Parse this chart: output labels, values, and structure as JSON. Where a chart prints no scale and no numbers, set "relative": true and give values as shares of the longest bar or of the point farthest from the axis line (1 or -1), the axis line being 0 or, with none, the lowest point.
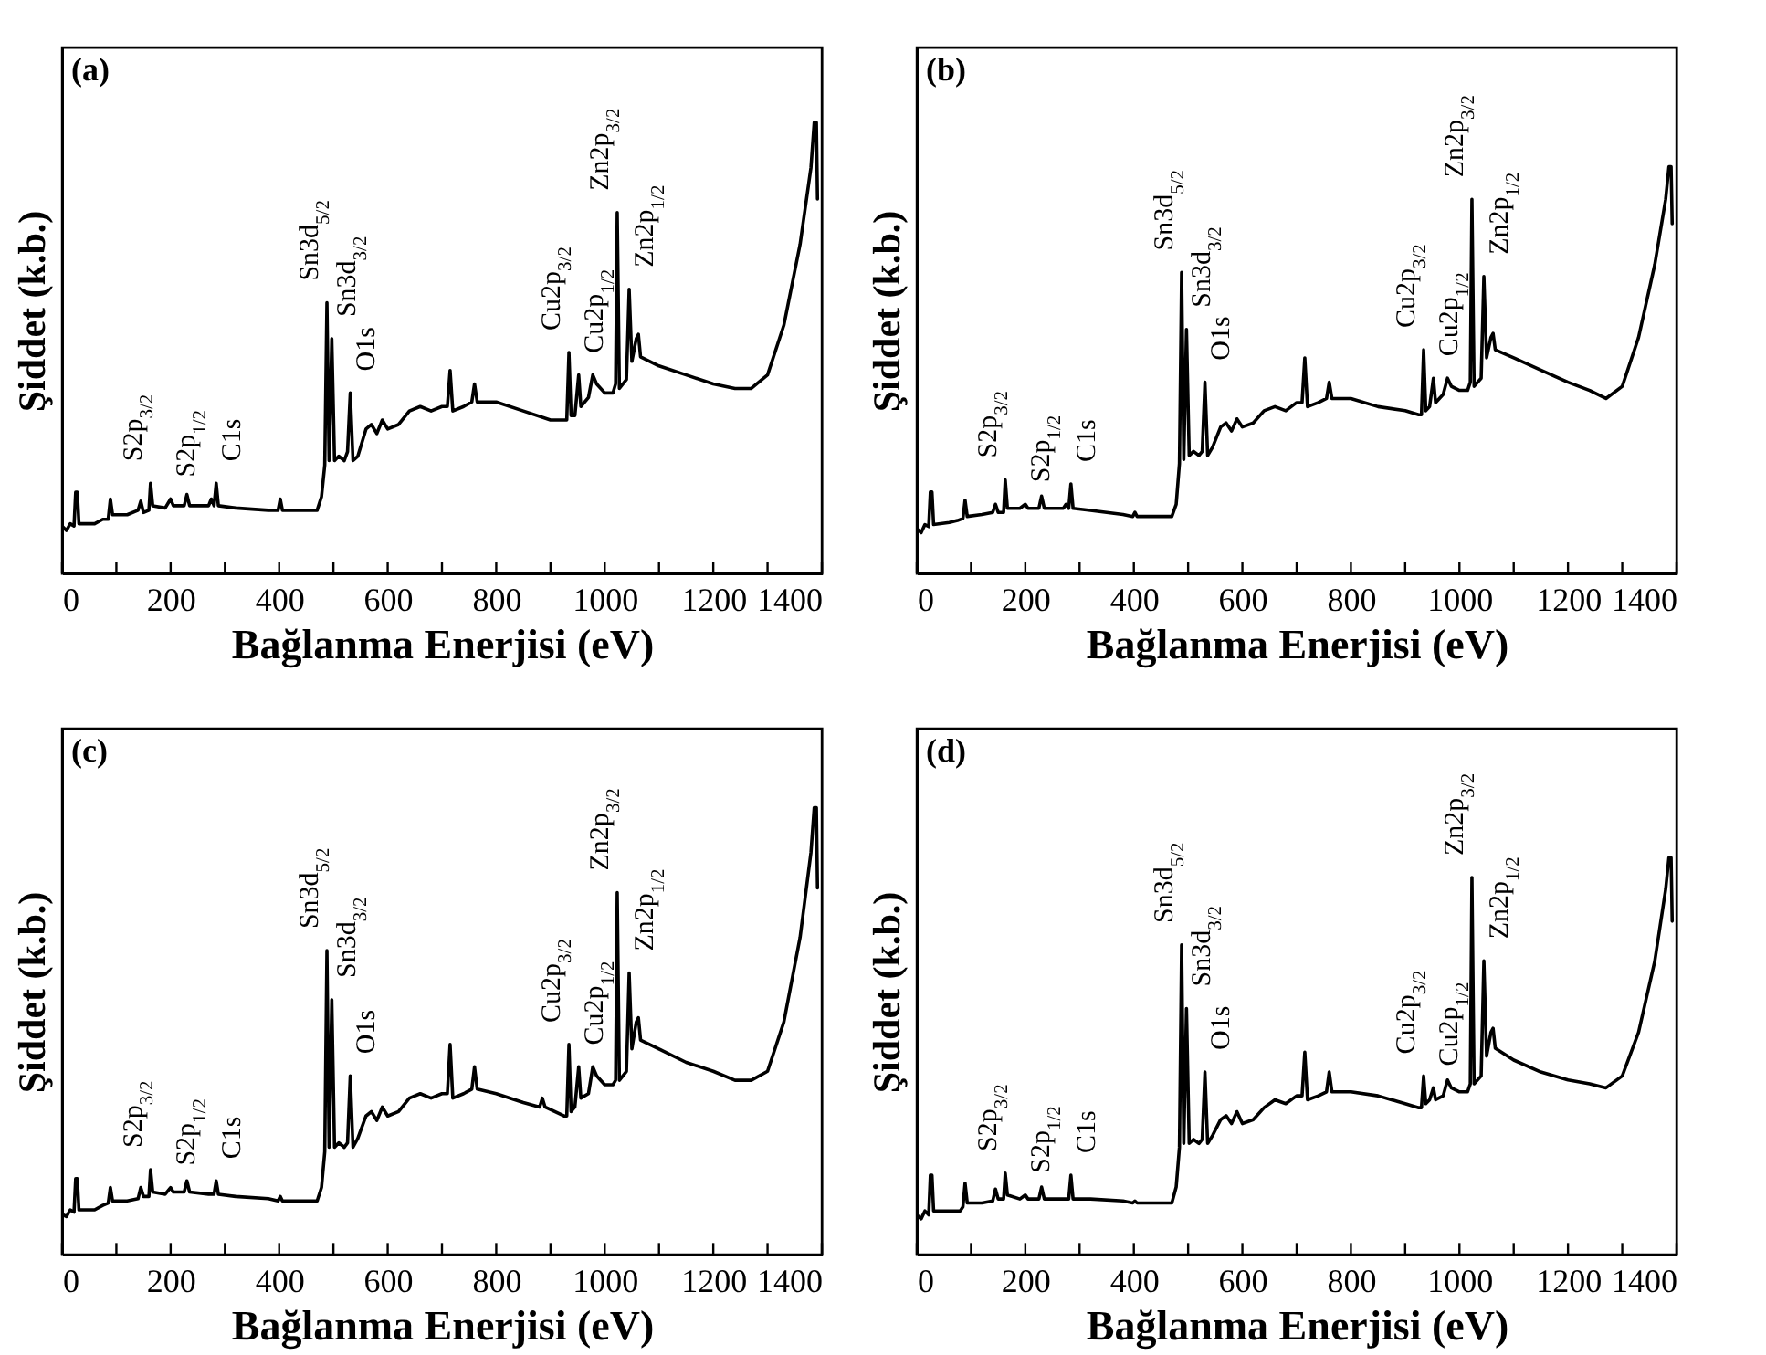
{
  "chart_data": [
    {
      "type": "line",
      "title": "(a)",
      "xlabel": "Bağlanma Enerjisi (eV)",
      "ylabel": "Şiddet (k.b.)",
      "relative": true,
      "grid": false,
      "xlim": [
        0,
        1400
      ],
      "xticks": [
        0,
        {
          "value": 100,
          "label": null
        },
        200,
        {
          "value": 300,
          "label": null
        },
        400,
        {
          "value": 500,
          "label": null
        },
        600,
        {
          "value": 700,
          "label": null
        },
        800,
        {
          "value": 900,
          "label": null
        },
        1000,
        {
          "value": 1100,
          "label": null
        },
        1200,
        {
          "value": 1300,
          "label": null
        },
        1400
      ],
      "series": [
        {
          "color": "#000000",
          "x": [
            0,
            8,
            15,
            22,
            25,
            28,
            31,
            60,
            75,
            85,
            89,
            93,
            120,
            140,
            145,
            150,
            160,
            163,
            167,
            190,
            200,
            205,
            225,
            230,
            235,
            270,
            275,
            280,
            284,
            288,
            320,
            380,
            398,
            402,
            406,
            470,
            478,
            484,
            488,
            492,
            497,
            502,
            510,
            520,
            526,
            531,
            536,
            545,
            560,
            570,
            580,
            590,
            600,
            620,
            640,
            660,
            680,
            700,
            710,
            715,
            720,
            740,
            755,
            760,
            765,
            800,
            850,
            900,
            925,
            930,
            934,
            938,
            945,
            952,
            956,
            970,
            978,
            985,
            1000,
            1015,
            1020,
            1023,
            1027,
            1040,
            1045,
            1050,
            1058,
            1062,
            1066,
            1100,
            1150,
            1200,
            1240,
            1270,
            1300,
            1330,
            1360,
            1380,
            1386,
            1390,
            1392
          ],
          "values": [
            0.105,
            0.095,
            0.11,
            0.105,
            0.18,
            0.18,
            0.11,
            0.11,
            0.12,
            0.12,
            0.165,
            0.13,
            0.13,
            0.14,
            0.16,
            0.135,
            0.14,
            0.2,
            0.15,
            0.145,
            0.165,
            0.15,
            0.15,
            0.175,
            0.15,
            0.15,
            0.165,
            0.15,
            0.2,
            0.15,
            0.145,
            0.14,
            0.14,
            0.165,
            0.14,
            0.14,
            0.17,
            0.24,
            0.6,
            0.25,
            0.52,
            0.25,
            0.26,
            0.25,
            0.27,
            0.4,
            0.25,
            0.26,
            0.32,
            0.33,
            0.31,
            0.34,
            0.32,
            0.33,
            0.36,
            0.37,
            0.36,
            0.37,
            0.37,
            0.45,
            0.36,
            0.37,
            0.38,
            0.42,
            0.38,
            0.38,
            0.36,
            0.34,
            0.34,
            0.34,
            0.49,
            0.35,
            0.35,
            0.44,
            0.37,
            0.39,
            0.44,
            0.42,
            0.4,
            0.4,
            0.42,
            0.8,
            0.41,
            0.43,
            0.63,
            0.47,
            0.52,
            0.53,
            0.48,
            0.46,
            0.44,
            0.42,
            0.41,
            0.41,
            0.44,
            0.55,
            0.73,
            0.9,
            1.0,
            1.0,
            0.83
          ]
        }
      ],
      "annotations": [
        {
          "text": "S2p$_{3/2}$",
          "x": 163,
          "y": 0.2
        },
        {
          "text": "S2p$_{1/2}$",
          "x": 200,
          "y": 0.165
        },
        {
          "text": "C1s",
          "x": 284,
          "y": 0.2
        },
        {
          "text": "Sn3d$_{5/2}$",
          "x": 488,
          "y": 0.6
        },
        {
          "text": "Sn3d$_{3/2}$",
          "x": 497,
          "y": 0.52
        },
        {
          "text": "O1s",
          "x": 531,
          "y": 0.4
        },
        {
          "text": "Cu2p$_{3/2}$",
          "x": 934,
          "y": 0.49
        },
        {
          "text": "Cu2p$_{1/2}$",
          "x": 952,
          "y": 0.44
        },
        {
          "text": "Zn2p$_{3/2}$",
          "x": 1023,
          "y": 0.8
        },
        {
          "text": "Zn2p$_{1/2}$",
          "x": 1045,
          "y": 0.63
        }
      ]
    },
    {
      "type": "line",
      "title": "(b)",
      "xlabel": "Bağlanma Enerjisi (eV)",
      "ylabel": "Şiddet (k.b.)",
      "relative": true,
      "grid": false,
      "xlim": [
        0,
        1400
      ],
      "xticks": [
        0,
        {
          "value": 100,
          "label": null
        },
        200,
        {
          "value": 300,
          "label": null
        },
        400,
        {
          "value": 500,
          "label": null
        },
        600,
        {
          "value": 700,
          "label": null
        },
        800,
        {
          "value": 900,
          "label": null
        },
        1000,
        {
          "value": 1100,
          "label": null
        },
        1200,
        {
          "value": 1300,
          "label": null
        },
        1400
      ],
      "series": [
        {
          "color": "#000000",
          "x": [
            0,
            8,
            15,
            22,
            25,
            28,
            31,
            60,
            75,
            85,
            89,
            93,
            120,
            140,
            145,
            150,
            160,
            163,
            167,
            190,
            200,
            205,
            225,
            230,
            235,
            270,
            275,
            280,
            284,
            288,
            320,
            380,
            398,
            402,
            406,
            470,
            478,
            484,
            488,
            492,
            497,
            502,
            510,
            520,
            526,
            531,
            536,
            545,
            560,
            570,
            580,
            590,
            600,
            620,
            640,
            660,
            680,
            700,
            710,
            715,
            720,
            740,
            755,
            760,
            765,
            800,
            850,
            900,
            925,
            930,
            934,
            938,
            945,
            952,
            956,
            970,
            978,
            985,
            1000,
            1015,
            1020,
            1023,
            1027,
            1040,
            1045,
            1050,
            1058,
            1062,
            1066,
            1100,
            1150,
            1200,
            1240,
            1270,
            1300,
            1330,
            1360,
            1380,
            1386,
            1390,
            1392
          ],
          "values": [
            0.11,
            0.1,
            0.12,
            0.115,
            0.2,
            0.2,
            0.12,
            0.125,
            0.13,
            0.135,
            0.18,
            0.14,
            0.145,
            0.15,
            0.17,
            0.15,
            0.15,
            0.23,
            0.16,
            0.16,
            0.17,
            0.16,
            0.16,
            0.19,
            0.16,
            0.16,
            0.17,
            0.16,
            0.22,
            0.16,
            0.155,
            0.145,
            0.14,
            0.15,
            0.14,
            0.14,
            0.17,
            0.27,
            0.74,
            0.28,
            0.6,
            0.29,
            0.3,
            0.29,
            0.3,
            0.47,
            0.29,
            0.31,
            0.36,
            0.37,
            0.35,
            0.38,
            0.36,
            0.37,
            0.4,
            0.41,
            0.4,
            0.42,
            0.42,
            0.53,
            0.41,
            0.42,
            0.43,
            0.47,
            0.43,
            0.43,
            0.41,
            0.4,
            0.39,
            0.39,
            0.55,
            0.4,
            0.41,
            0.48,
            0.42,
            0.44,
            0.48,
            0.46,
            0.45,
            0.45,
            0.47,
            0.92,
            0.46,
            0.48,
            0.73,
            0.53,
            0.58,
            0.59,
            0.55,
            0.53,
            0.5,
            0.47,
            0.45,
            0.43,
            0.46,
            0.58,
            0.76,
            0.92,
            1.0,
            1.0,
            0.86
          ]
        }
      ],
      "annotations": [
        {
          "text": "S2p$_{3/2}$",
          "x": 163,
          "y": 0.23
        },
        {
          "text": "S2p$_{1/2}$",
          "x": 200,
          "y": 0.17
        },
        {
          "text": "C1s",
          "x": 284,
          "y": 0.22
        },
        {
          "text": "Sn3d$_{5/2}$",
          "x": 488,
          "y": 0.74
        },
        {
          "text": "Sn3d$_{3/2}$",
          "x": 497,
          "y": 0.6
        },
        {
          "text": "O1s",
          "x": 531,
          "y": 0.47
        },
        {
          "text": "Cu2p$_{3/2}$",
          "x": 934,
          "y": 0.55
        },
        {
          "text": "Cu2p$_{1/2}$",
          "x": 952,
          "y": 0.48
        },
        {
          "text": "Zn2p$_{3/2}$",
          "x": 1023,
          "y": 0.92
        },
        {
          "text": "Zn2p$_{1/2}$",
          "x": 1045,
          "y": 0.73
        }
      ]
    },
    {
      "type": "line",
      "title": "(c)",
      "xlabel": "Bağlanma Enerjisi (eV)",
      "ylabel": "Şiddet (k.b.)",
      "relative": true,
      "grid": false,
      "xlim": [
        0,
        1400
      ],
      "xticks": [
        0,
        {
          "value": 100,
          "label": null
        },
        200,
        {
          "value": 300,
          "label": null
        },
        400,
        {
          "value": 500,
          "label": null
        },
        600,
        {
          "value": 700,
          "label": null
        },
        800,
        {
          "value": 900,
          "label": null
        },
        1000,
        {
          "value": 1100,
          "label": null
        },
        1200,
        {
          "value": 1300,
          "label": null
        },
        1400
      ],
      "series": [
        {
          "color": "#000000",
          "x": [
            0,
            8,
            15,
            22,
            25,
            28,
            31,
            60,
            75,
            85,
            89,
            93,
            120,
            140,
            145,
            150,
            160,
            163,
            167,
            190,
            200,
            205,
            225,
            230,
            235,
            270,
            280,
            284,
            288,
            320,
            380,
            398,
            402,
            406,
            470,
            478,
            484,
            488,
            492,
            497,
            502,
            510,
            520,
            526,
            531,
            536,
            545,
            560,
            570,
            580,
            590,
            600,
            620,
            640,
            660,
            680,
            700,
            710,
            715,
            720,
            740,
            755,
            760,
            765,
            800,
            850,
            880,
            885,
            890,
            925,
            930,
            934,
            938,
            945,
            952,
            956,
            970,
            978,
            985,
            1000,
            1015,
            1020,
            1023,
            1027,
            1040,
            1045,
            1050,
            1058,
            1062,
            1066,
            1100,
            1150,
            1200,
            1240,
            1270,
            1300,
            1330,
            1360,
            1380,
            1386,
            1390,
            1392
          ],
          "values": [
            0.09,
            0.085,
            0.1,
            0.095,
            0.17,
            0.17,
            0.1,
            0.1,
            0.11,
            0.115,
            0.15,
            0.12,
            0.12,
            0.125,
            0.15,
            0.13,
            0.13,
            0.19,
            0.14,
            0.135,
            0.15,
            0.14,
            0.14,
            0.165,
            0.14,
            0.135,
            0.135,
            0.165,
            0.135,
            0.13,
            0.125,
            0.12,
            0.13,
            0.12,
            0.12,
            0.15,
            0.23,
            0.68,
            0.24,
            0.57,
            0.24,
            0.25,
            0.24,
            0.25,
            0.4,
            0.24,
            0.26,
            0.31,
            0.32,
            0.3,
            0.33,
            0.31,
            0.32,
            0.35,
            0.36,
            0.35,
            0.36,
            0.36,
            0.47,
            0.35,
            0.36,
            0.37,
            0.42,
            0.37,
            0.36,
            0.34,
            0.33,
            0.35,
            0.33,
            0.31,
            0.31,
            0.47,
            0.32,
            0.33,
            0.42,
            0.35,
            0.36,
            0.42,
            0.4,
            0.38,
            0.38,
            0.39,
            0.81,
            0.39,
            0.41,
            0.63,
            0.46,
            0.52,
            0.53,
            0.48,
            0.46,
            0.43,
            0.41,
            0.39,
            0.39,
            0.41,
            0.52,
            0.71,
            0.9,
            1.0,
            1.0,
            0.82
          ]
        }
      ],
      "annotations": [
        {
          "text": "S2p$_{3/2}$",
          "x": 163,
          "y": 0.19
        },
        {
          "text": "S2p$_{1/2}$",
          "x": 200,
          "y": 0.15
        },
        {
          "text": "C1s",
          "x": 284,
          "y": 0.165
        },
        {
          "text": "Sn3d$_{5/2}$",
          "x": 488,
          "y": 0.68
        },
        {
          "text": "Sn3d$_{3/2}$",
          "x": 497,
          "y": 0.57
        },
        {
          "text": "O1s",
          "x": 531,
          "y": 0.4
        },
        {
          "text": "Cu2p$_{3/2}$",
          "x": 934,
          "y": 0.47
        },
        {
          "text": "Cu2p$_{1/2}$",
          "x": 952,
          "y": 0.42
        },
        {
          "text": "Zn2p$_{3/2}$",
          "x": 1023,
          "y": 0.81
        },
        {
          "text": "Zn2p$_{1/2}$",
          "x": 1045,
          "y": 0.63
        }
      ]
    },
    {
      "type": "line",
      "title": "(d)",
      "xlabel": "Bağlanma Enerjisi (eV)",
      "ylabel": "Şiddet (k.b.)",
      "relative": true,
      "grid": false,
      "xlim": [
        0,
        1400
      ],
      "xticks": [
        0,
        {
          "value": 100,
          "label": null
        },
        200,
        {
          "value": 300,
          "label": null
        },
        400,
        {
          "value": 500,
          "label": null
        },
        600,
        {
          "value": 700,
          "label": null
        },
        800,
        {
          "value": 900,
          "label": null
        },
        1000,
        {
          "value": 1100,
          "label": null
        },
        1200,
        {
          "value": 1300,
          "label": null
        },
        1400
      ],
      "series": [
        {
          "color": "#000000",
          "x": [
            0,
            8,
            15,
            22,
            25,
            28,
            31,
            60,
            80,
            85,
            89,
            93,
            120,
            140,
            145,
            150,
            160,
            163,
            167,
            190,
            200,
            205,
            225,
            230,
            235,
            270,
            280,
            284,
            288,
            320,
            380,
            398,
            402,
            406,
            470,
            478,
            484,
            488,
            492,
            497,
            502,
            510,
            520,
            526,
            531,
            536,
            545,
            560,
            570,
            580,
            590,
            600,
            620,
            640,
            660,
            680,
            700,
            710,
            715,
            720,
            740,
            755,
            760,
            765,
            800,
            850,
            900,
            925,
            930,
            934,
            938,
            945,
            952,
            956,
            970,
            978,
            985,
            1000,
            1015,
            1020,
            1023,
            1027,
            1040,
            1045,
            1050,
            1058,
            1062,
            1066,
            1100,
            1150,
            1200,
            1240,
            1270,
            1300,
            1330,
            1360,
            1380,
            1386,
            1390,
            1392
          ],
          "values": [
            0.1,
            0.09,
            0.11,
            0.1,
            0.2,
            0.2,
            0.11,
            0.11,
            0.11,
            0.12,
            0.18,
            0.13,
            0.13,
            0.135,
            0.165,
            0.14,
            0.14,
            0.205,
            0.15,
            0.14,
            0.15,
            0.14,
            0.14,
            0.17,
            0.14,
            0.14,
            0.14,
            0.2,
            0.14,
            0.14,
            0.135,
            0.13,
            0.135,
            0.13,
            0.13,
            0.17,
            0.27,
            0.78,
            0.28,
            0.62,
            0.28,
            0.29,
            0.28,
            0.29,
            0.46,
            0.28,
            0.3,
            0.34,
            0.35,
            0.33,
            0.36,
            0.33,
            0.34,
            0.37,
            0.39,
            0.38,
            0.4,
            0.4,
            0.51,
            0.39,
            0.4,
            0.41,
            0.46,
            0.41,
            0.41,
            0.4,
            0.38,
            0.37,
            0.37,
            0.45,
            0.38,
            0.39,
            0.42,
            0.39,
            0.4,
            0.44,
            0.42,
            0.41,
            0.41,
            0.43,
            0.95,
            0.43,
            0.45,
            0.74,
            0.5,
            0.56,
            0.57,
            0.52,
            0.49,
            0.46,
            0.44,
            0.43,
            0.42,
            0.45,
            0.56,
            0.74,
            0.92,
            1.0,
            1.0,
            0.84
          ]
        }
      ],
      "annotations": [
        {
          "text": "S2p$_{3/2}$",
          "x": 163,
          "y": 0.205
        },
        {
          "text": "S2p$_{1/2}$",
          "x": 200,
          "y": 0.15
        },
        {
          "text": "C1s",
          "x": 284,
          "y": 0.2
        },
        {
          "text": "Sn3d$_{5/2}$",
          "x": 488,
          "y": 0.78
        },
        {
          "text": "Sn3d$_{3/2}$",
          "x": 497,
          "y": 0.62
        },
        {
          "text": "O1s",
          "x": 531,
          "y": 0.46
        },
        {
          "text": "Cu2p$_{3/2}$",
          "x": 934,
          "y": 0.45
        },
        {
          "text": "Cu2p$_{1/2}$",
          "x": 952,
          "y": 0.42
        },
        {
          "text": "Zn2p$_{3/2}$",
          "x": 1023,
          "y": 0.95
        },
        {
          "text": "Zn2p$_{1/2}$",
          "x": 1045,
          "y": 0.74
        }
      ]
    }
  ]
}
